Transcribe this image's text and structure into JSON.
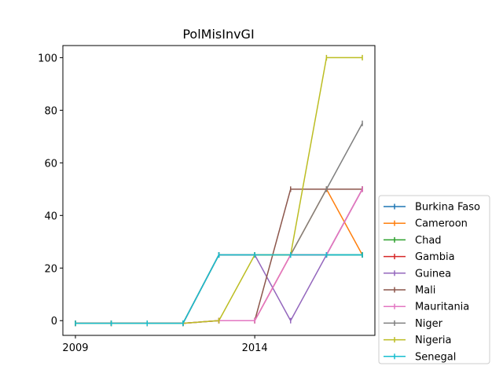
{
  "chart_data": {
    "type": "line",
    "title": "PolMisInvGI",
    "xlabel": "",
    "ylabel": "",
    "x": [
      2009,
      2010,
      2011,
      2012,
      2013,
      2014,
      2015,
      2016,
      2017
    ],
    "xlim": [
      2008.65,
      2017.35
    ],
    "ylim": [
      -5.6,
      104.6
    ],
    "xticks": [
      2009,
      2014
    ],
    "yticks": [
      0,
      20,
      40,
      60,
      80,
      100
    ],
    "grid": false,
    "legend": "outside-right-bottom",
    "series": [
      {
        "name": "Burkina Faso",
        "color": "#1f77b4",
        "values": [
          -1,
          -1,
          -1,
          -1,
          25,
          25,
          25,
          25,
          25
        ]
      },
      {
        "name": "Cameroon",
        "color": "#ff7f0e",
        "values": [
          -1,
          -1,
          -1,
          -1,
          25,
          25,
          25,
          50,
          25
        ]
      },
      {
        "name": "Chad",
        "color": "#2ca02c",
        "values": [
          -1,
          -1,
          -1,
          -1,
          25,
          25,
          25,
          25,
          25
        ]
      },
      {
        "name": "Gambia",
        "color": "#d62728",
        "values": [
          -1,
          -1,
          -1,
          -1,
          0,
          0,
          25,
          25,
          50
        ]
      },
      {
        "name": "Guinea",
        "color": "#9467bd",
        "values": [
          -1,
          -1,
          -1,
          -1,
          25,
          25,
          0,
          25,
          50
        ]
      },
      {
        "name": "Mali",
        "color": "#8c564b",
        "values": [
          -1,
          -1,
          -1,
          -1,
          0,
          0,
          50,
          50,
          50
        ]
      },
      {
        "name": "Mauritania",
        "color": "#e377c2",
        "values": [
          -1,
          -1,
          -1,
          -1,
          0,
          0,
          25,
          25,
          50
        ]
      },
      {
        "name": "Niger",
        "color": "#7f7f7f",
        "values": [
          -1,
          -1,
          -1,
          -1,
          25,
          25,
          25,
          50,
          75
        ]
      },
      {
        "name": "Nigeria",
        "color": "#bcbd22",
        "values": [
          -1,
          -1,
          -1,
          -1,
          0,
          25,
          25,
          100,
          100
        ]
      },
      {
        "name": "Senegal",
        "color": "#17becf",
        "values": [
          -1,
          -1,
          -1,
          -1,
          25,
          25,
          25,
          25,
          25
        ]
      }
    ]
  }
}
